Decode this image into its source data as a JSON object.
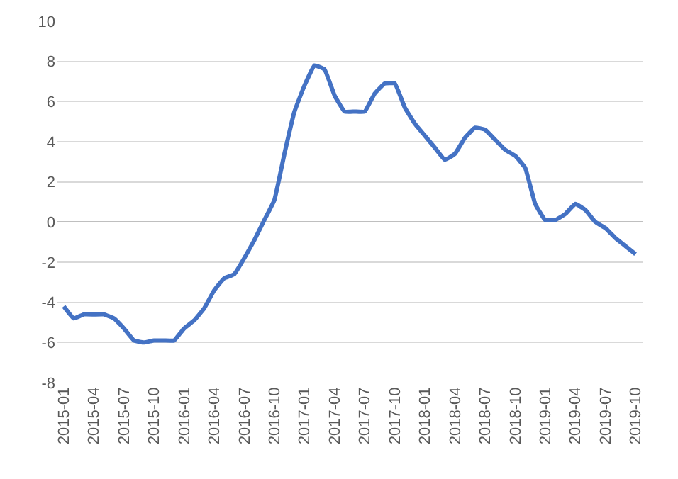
{
  "chart_data": {
    "type": "line",
    "categories": [
      "2015-01",
      null,
      null,
      "2015-04",
      null,
      null,
      "2015-07",
      null,
      null,
      "2015-10",
      null,
      null,
      "2016-01",
      null,
      null,
      "2016-04",
      null,
      null,
      "2016-07",
      null,
      null,
      "2016-10",
      null,
      null,
      "2017-01",
      null,
      null,
      "2017-04",
      null,
      null,
      "2017-07",
      null,
      null,
      "2017-10",
      null,
      null,
      "2018-01",
      null,
      null,
      "2018-04",
      null,
      null,
      "2018-07",
      null,
      null,
      "2018-10",
      null,
      null,
      "2019-01",
      null,
      null,
      "2019-04",
      null,
      null,
      "2019-07",
      null,
      null,
      "2019-10"
    ],
    "series": [
      {
        "color": "#4472c4",
        "values": [
          -4.2,
          -4.8,
          -4.6,
          -4.6,
          -4.6,
          -4.8,
          -5.3,
          -5.9,
          -6.0,
          -5.9,
          -5.9,
          -5.9,
          -5.3,
          -4.9,
          -4.3,
          -3.4,
          -2.8,
          -2.6,
          -1.8,
          -0.9,
          0.1,
          1.1,
          3.4,
          5.5,
          6.8,
          7.8,
          7.6,
          6.3,
          5.5,
          5.5,
          5.5,
          6.4,
          6.9,
          6.9,
          5.7,
          4.9,
          4.3,
          3.7,
          3.1,
          3.4,
          4.2,
          4.7,
          4.6,
          4.1,
          3.6,
          3.3,
          2.7,
          0.9,
          0.1,
          0.1,
          0.4,
          0.9,
          0.6,
          0.0,
          -0.3,
          -0.8,
          -1.2,
          -1.6
        ]
      }
    ],
    "ylim": [
      -8,
      10
    ],
    "yticks": [
      -8,
      -6,
      -4,
      -2,
      0,
      2,
      4,
      6,
      8,
      10
    ],
    "grid": "y",
    "legend": false,
    "marker": "none",
    "line_style": "solid"
  }
}
